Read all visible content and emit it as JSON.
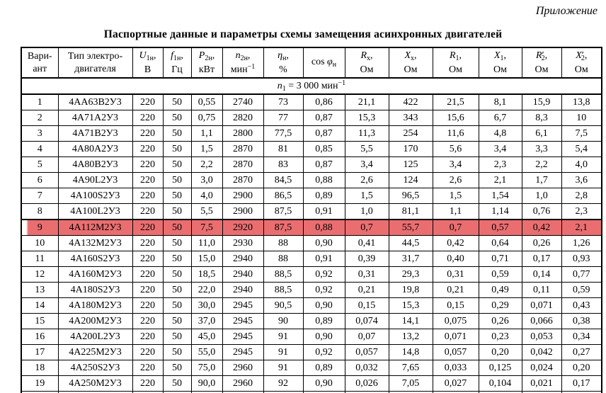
{
  "page": {
    "corner_note": "Приложение",
    "title": "Паспортные данные и параметры схемы замещения асинхронных двигателей"
  },
  "table": {
    "headers": [
      {
        "name": "variant",
        "l1": [
          [
            "t",
            "Вари-"
          ]
        ],
        "l2": [
          [
            "t",
            "ант"
          ]
        ]
      },
      {
        "name": "motor-type",
        "l1": [
          [
            "t",
            "Тип электро-"
          ]
        ],
        "l2": [
          [
            "t",
            "двигателя"
          ]
        ]
      },
      {
        "name": "u1n",
        "l1": [
          [
            "i",
            "U"
          ],
          [
            "sub",
            "1н"
          ],
          [
            "t",
            ","
          ]
        ],
        "l2": [
          [
            "t",
            "В"
          ]
        ]
      },
      {
        "name": "f1n",
        "l1": [
          [
            "i",
            "f"
          ],
          [
            "sub",
            "1н"
          ],
          [
            "t",
            ","
          ]
        ],
        "l2": [
          [
            "t",
            "Гц"
          ]
        ]
      },
      {
        "name": "p2n",
        "l1": [
          [
            "i",
            "P"
          ],
          [
            "sub",
            "2н"
          ],
          [
            "t",
            ","
          ]
        ],
        "l2": [
          [
            "t",
            "кВт"
          ]
        ]
      },
      {
        "name": "n2n",
        "l1": [
          [
            "i",
            "n"
          ],
          [
            "sub",
            "2н"
          ],
          [
            "t",
            ","
          ]
        ],
        "l2": [
          [
            "t",
            "мин"
          ],
          [
            "sup",
            "−1"
          ]
        ]
      },
      {
        "name": "eta",
        "l1": [
          [
            "i",
            "η"
          ],
          [
            "sub",
            "н"
          ],
          [
            "t",
            ","
          ]
        ],
        "l2": [
          [
            "t",
            "%"
          ]
        ]
      },
      {
        "name": "cos-phi",
        "l1": [
          [
            "t",
            "cos "
          ],
          [
            "i",
            "φ"
          ],
          [
            "sub",
            "н"
          ]
        ],
        "l2": []
      },
      {
        "name": "rx",
        "l1": [
          [
            "i",
            "R"
          ],
          [
            "sub",
            "х"
          ],
          [
            "t",
            ","
          ]
        ],
        "l2": [
          [
            "t",
            "Ом"
          ]
        ]
      },
      {
        "name": "xx",
        "l1": [
          [
            "i",
            "X"
          ],
          [
            "sub",
            "х"
          ],
          [
            "t",
            ","
          ]
        ],
        "l2": [
          [
            "t",
            "Ом"
          ]
        ]
      },
      {
        "name": "r1",
        "l1": [
          [
            "i",
            "R"
          ],
          [
            "sub",
            "1"
          ],
          [
            "t",
            ","
          ]
        ],
        "l2": [
          [
            "t",
            "Ом"
          ]
        ]
      },
      {
        "name": "x1",
        "l1": [
          [
            "i",
            "X"
          ],
          [
            "sub",
            "1"
          ],
          [
            "t",
            ","
          ]
        ],
        "l2": [
          [
            "t",
            "Ом"
          ]
        ]
      },
      {
        "name": "r2-prime",
        "l1": [
          [
            "i",
            "R"
          ],
          [
            "t",
            "′"
          ],
          [
            "tsub",
            "2"
          ],
          [
            "t",
            ","
          ]
        ],
        "l2": [
          [
            "t",
            "Ом"
          ]
        ]
      },
      {
        "name": "x2-prime",
        "l1": [
          [
            "i",
            "X"
          ],
          [
            "t",
            "′"
          ],
          [
            "tsub",
            "2"
          ],
          [
            "t",
            ","
          ]
        ],
        "l2": [
          [
            "t",
            "Ом"
          ]
        ]
      }
    ],
    "section_row_parts": [
      [
        "i",
        "n"
      ],
      [
        "sub",
        "1"
      ],
      [
        "t",
        " = 3 000 мин"
      ],
      [
        "sup",
        "−1"
      ]
    ],
    "highlighted_variant": "9",
    "highlight_color": "#ea6e70",
    "rows": [
      [
        "1",
        "4АА63В2У3",
        "220",
        "50",
        "0,55",
        "2740",
        "73",
        "0,86",
        "21,1",
        "422",
        "21,5",
        "8,1",
        "15,9",
        "13,8"
      ],
      [
        "2",
        "4А71А2У3",
        "220",
        "50",
        "0,75",
        "2820",
        "77",
        "0,87",
        "15,3",
        "343",
        "15,6",
        "6,7",
        "8,3",
        "10"
      ],
      [
        "3",
        "4А71В2У3",
        "220",
        "50",
        "1,1",
        "2800",
        "77,5",
        "0,87",
        "11,3",
        "254",
        "11,6",
        "4,8",
        "6,1",
        "7,5"
      ],
      [
        "4",
        "4А80А2У3",
        "220",
        "50",
        "1,5",
        "2870",
        "81",
        "0,85",
        "5,5",
        "170",
        "5,6",
        "3,4",
        "3,3",
        "5,4"
      ],
      [
        "5",
        "4А80В2У3",
        "220",
        "50",
        "2,2",
        "2870",
        "83",
        "0,87",
        "3,4",
        "125",
        "3,4",
        "2,3",
        "2,2",
        "4,0"
      ],
      [
        "6",
        "4А90L2У3",
        "220",
        "50",
        "3,0",
        "2870",
        "84,5",
        "0,88",
        "2,6",
        "124",
        "2,6",
        "2,1",
        "1,7",
        "3,6"
      ],
      [
        "7",
        "4А100S2У3",
        "220",
        "50",
        "4,0",
        "2900",
        "86,5",
        "0,89",
        "1,5",
        "96,5",
        "1,5",
        "1,54",
        "1,0",
        "2,8"
      ],
      [
        "8",
        "4А100L2У3",
        "220",
        "50",
        "5,5",
        "2900",
        "87,5",
        "0,91",
        "1,0",
        "81,1",
        "1,1",
        "1,14",
        "0,76",
        "2,3"
      ],
      [
        "9",
        "4А112М2У3",
        "220",
        "50",
        "7,5",
        "2920",
        "87,5",
        "0,88",
        "0,7",
        "55,7",
        "0,7",
        "0,57",
        "0,42",
        "2,1"
      ],
      [
        "10",
        "4А132М2У3",
        "220",
        "50",
        "11,0",
        "2930",
        "88",
        "0,90",
        "0,41",
        "44,5",
        "0,42",
        "0,64",
        "0,26",
        "1,26"
      ],
      [
        "11",
        "4А160S2У3",
        "220",
        "50",
        "15,0",
        "2940",
        "88",
        "0,91",
        "0,39",
        "31,7",
        "0,40",
        "0,71",
        "0,17",
        "0,93"
      ],
      [
        "12",
        "4А160М2У3",
        "220",
        "50",
        "18,5",
        "2940",
        "88,5",
        "0,92",
        "0,31",
        "29,3",
        "0,31",
        "0,59",
        "0,14",
        "0,77"
      ],
      [
        "13",
        "4А180S2У3",
        "220",
        "50",
        "22,0",
        "2940",
        "88,5",
        "0,92",
        "0,21",
        "19,8",
        "0,21",
        "0,49",
        "0,11",
        "0,59"
      ],
      [
        "14",
        "4А180М2У3",
        "220",
        "50",
        "30,0",
        "2945",
        "90,5",
        "0,90",
        "0,15",
        "15,3",
        "0,15",
        "0,29",
        "0,071",
        "0,43"
      ],
      [
        "15",
        "4А200М2У3",
        "220",
        "50",
        "37,0",
        "2945",
        "90",
        "0,89",
        "0,074",
        "14,1",
        "0,075",
        "0,26",
        "0,066",
        "0,38"
      ],
      [
        "16",
        "4А200L2У3",
        "220",
        "50",
        "45,0",
        "2945",
        "91",
        "0,90",
        "0,07",
        "13,2",
        "0,071",
        "0,23",
        "0,053",
        "0,34"
      ],
      [
        "17",
        "4А225М2У3",
        "220",
        "50",
        "55,0",
        "2945",
        "91",
        "0,92",
        "0,057",
        "14,8",
        "0,057",
        "0,20",
        "0,042",
        "0,27"
      ],
      [
        "18",
        "4А250S2У3",
        "220",
        "50",
        "75,0",
        "2960",
        "91",
        "0,89",
        "0,032",
        "7,65",
        "0,033",
        "0,125",
        "0,024",
        "0,20"
      ],
      [
        "19",
        "4А250М2У3",
        "220",
        "50",
        "90,0",
        "2960",
        "92",
        "0,90",
        "0,026",
        "7,05",
        "0,027",
        "0,104",
        "0,021",
        "0,17"
      ]
    ]
  }
}
